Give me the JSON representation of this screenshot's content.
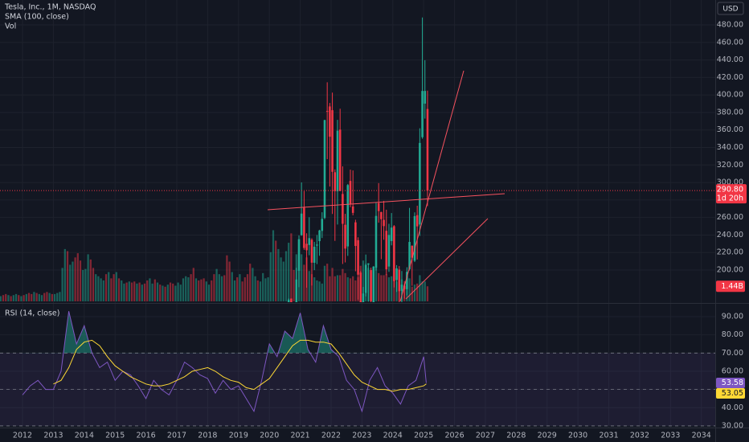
{
  "chart_data": [
    {
      "type": "candlestick",
      "title": "Tesla, Inc., 1M, NASDAQ",
      "indicators": [
        "SMA (100, close)",
        "Vol"
      ],
      "currency": "USD",
      "price_label": "290.80",
      "countdown": "1d 20h",
      "up_color": "#22ab94",
      "down_color": "#f23645",
      "x": [
        "2020-08",
        "2020-09",
        "2020-10",
        "2020-11",
        "2020-12",
        "2021-01",
        "2021-02",
        "2021-03",
        "2021-04",
        "2021-05",
        "2021-06",
        "2021-07",
        "2021-08",
        "2021-09",
        "2021-10",
        "2021-11",
        "2021-12",
        "2022-01",
        "2022-02",
        "2022-03",
        "2022-04",
        "2022-05",
        "2022-06",
        "2022-07",
        "2022-08",
        "2022-09",
        "2022-10",
        "2022-11",
        "2022-12",
        "2023-01",
        "2023-02",
        "2023-03",
        "2023-04",
        "2023-05",
        "2023-06",
        "2023-07",
        "2023-08",
        "2023-09",
        "2023-10",
        "2023-11",
        "2023-12",
        "2024-01",
        "2024-02",
        "2024-03",
        "2024-04",
        "2024-05",
        "2024-06",
        "2024-07",
        "2024-08",
        "2024-09",
        "2024-10",
        "2024-11",
        "2024-12",
        "2025-01",
        "2025-02"
      ],
      "open": [
        96.5,
        167.4,
        143.0,
        131.3,
        199.2,
        239.8,
        271.4,
        230.0,
        228.6,
        234.6,
        208.3,
        227.9,
        233.0,
        244.7,
        259.5,
        381.7,
        386.9,
        382.6,
        311.7,
        289.9,
        360.4,
        286.9,
        251.7,
        227.0,
        301.8,
        272.6,
        254.5,
        234.1,
        197.1,
        118.5,
        173.9,
        206.2,
        199.9,
        163.2,
        202.6,
        276.5,
        266.3,
        257.3,
        244.8,
        204.0,
        233.1,
        250.1,
        188.5,
        200.5,
        176.2,
        182.0,
        178.1,
        201.0,
        227.7,
        210.6,
        262.7,
        252.0,
        351.8,
        390.1,
        384.0
      ],
      "high": [
        167.5,
        167.5,
        155.3,
        202.6,
        239.6,
        300.1,
        290.1,
        242.0,
        260.3,
        236.3,
        232.2,
        240.0,
        246.0,
        266.0,
        371.7,
        414.5,
        390.9,
        402.7,
        315.0,
        371.6,
        384.3,
        318.5,
        264.2,
        298.3,
        314.7,
        313.8,
        257.5,
        237.4,
        198.9,
        180.7,
        217.7,
        207.8,
        202.7,
        204.5,
        277.0,
        299.3,
        266.5,
        279.0,
        268.9,
        252.8,
        265.1,
        251.3,
        205.6,
        204.5,
        198.9,
        187.3,
        203.2,
        271.0,
        228.2,
        265.9,
        273.5,
        361.9,
        488.5,
        439.7,
        405.0
      ],
      "low": [
        94.7,
        112.1,
        127.0,
        126.4,
        180.4,
        239.1,
        223.0,
        179.8,
        216.9,
        182.3,
        199.9,
        206.8,
        216.3,
        236.6,
        258.1,
        326.7,
        295.4,
        264.0,
        233.3,
        252.0,
        290.0,
        206.9,
        208.7,
        216.2,
        271.8,
        262.5,
        198.6,
        166.2,
        108.2,
        101.8,
        169.9,
        163.9,
        152.4,
        158.8,
        199.4,
        254.1,
        212.4,
        234.6,
        194.1,
        197.9,
        228.2,
        180.1,
        175.0,
        160.5,
        138.8,
        167.4,
        171.0,
        199.4,
        182.0,
        209.1,
        212.1,
        238.9,
        350.0,
        373.0,
        273.0
      ],
      "close": [
        166.1,
        143.0,
        129.3,
        189.2,
        235.2,
        264.5,
        225.2,
        222.6,
        236.5,
        208.4,
        226.6,
        229.1,
        245.2,
        258.5,
        371.3,
        381.6,
        352.3,
        312.2,
        290.1,
        359.2,
        290.3,
        252.8,
        224.5,
        297.1,
        275.6,
        265.3,
        227.5,
        194.7,
        123.2,
        173.2,
        205.7,
        207.5,
        164.3,
        203.9,
        261.8,
        267.4,
        258.1,
        250.2,
        200.8,
        240.1,
        248.5,
        187.3,
        201.9,
        175.8,
        183.3,
        178.1,
        197.9,
        232.1,
        214.1,
        261.6,
        249.9,
        345.2,
        404.6,
        404.6,
        290.8
      ],
      "ylim": [
        164.2,
        508.5
      ],
      "yticks": [
        {
          "value": 200,
          "label": "200.00"
        },
        {
          "value": 220,
          "label": "220.00"
        },
        {
          "value": 240,
          "label": "240.00"
        },
        {
          "value": 260,
          "label": "260.00"
        },
        {
          "value": 280,
          "label": "280.00"
        },
        {
          "value": 300,
          "label": "300.00"
        },
        {
          "value": 320,
          "label": "320.00"
        },
        {
          "value": 340,
          "label": "340.00"
        },
        {
          "value": 360,
          "label": "360.00"
        },
        {
          "value": 380,
          "label": "380.00"
        },
        {
          "value": 400,
          "label": "400.00"
        },
        {
          "value": 420,
          "label": "420.00"
        },
        {
          "value": 440,
          "label": "440.00"
        },
        {
          "value": 460,
          "label": "460.00"
        },
        {
          "value": 480,
          "label": "480.00"
        }
      ]
    },
    {
      "type": "bar",
      "up_color": "rgba(34,171,148,0.5)",
      "down_color": "rgba(242,54,69,0.5)",
      "label_color": "#f23645",
      "x": [
        "2011-04",
        "2011-05",
        "2011-06",
        "2011-07",
        "2011-08",
        "2011-09",
        "2011-10",
        "2011-11",
        "2011-12",
        "2012-01",
        "2012-02",
        "2012-03",
        "2012-04",
        "2012-05",
        "2012-06",
        "2012-07",
        "2012-08",
        "2012-09",
        "2012-10",
        "2012-11",
        "2012-12",
        "2013-01",
        "2013-02",
        "2013-03",
        "2013-04",
        "2013-05",
        "2013-06",
        "2013-07",
        "2013-08",
        "2013-09",
        "2013-10",
        "2013-11",
        "2013-12",
        "2014-01",
        "2014-02",
        "2014-03",
        "2014-04",
        "2014-05",
        "2014-06",
        "2014-07",
        "2014-08",
        "2014-09",
        "2014-10",
        "2014-11",
        "2014-12",
        "2015-01",
        "2015-02",
        "2015-03",
        "2015-04",
        "2015-05",
        "2015-06",
        "2015-07",
        "2015-08",
        "2015-09",
        "2015-10",
        "2015-11",
        "2015-12",
        "2016-01",
        "2016-02",
        "2016-03",
        "2016-04",
        "2016-05",
        "2016-06",
        "2016-07",
        "2016-08",
        "2016-09",
        "2016-10",
        "2016-11",
        "2016-12",
        "2017-01",
        "2017-02",
        "2017-03",
        "2017-04",
        "2017-05",
        "2017-06",
        "2017-07",
        "2017-08",
        "2017-09",
        "2017-10",
        "2017-11",
        "2017-12",
        "2018-01",
        "2018-02",
        "2018-03",
        "2018-04",
        "2018-05",
        "2018-06",
        "2018-07",
        "2018-08",
        "2018-09",
        "2018-10",
        "2018-11",
        "2018-12",
        "2019-01",
        "2019-02",
        "2019-03",
        "2019-04",
        "2019-05",
        "2019-06",
        "2019-07",
        "2019-08",
        "2019-09",
        "2019-10",
        "2019-11",
        "2019-12",
        "2020-01",
        "2020-02",
        "2020-03",
        "2020-04",
        "2020-05",
        "2020-06",
        "2020-07",
        "2020-08",
        "2020-09",
        "2020-10",
        "2020-11",
        "2020-12",
        "2021-01",
        "2021-02",
        "2021-03",
        "2021-04",
        "2021-05",
        "2021-06",
        "2021-07",
        "2021-08",
        "2021-09",
        "2021-10",
        "2021-11",
        "2021-12",
        "2022-01",
        "2022-02",
        "2022-03",
        "2022-04",
        "2022-05",
        "2022-06",
        "2022-07",
        "2022-08",
        "2022-09",
        "2022-10",
        "2022-11",
        "2022-12",
        "2023-01",
        "2023-02",
        "2023-03",
        "2023-04",
        "2023-05",
        "2023-06",
        "2023-07",
        "2023-08",
        "2023-09",
        "2023-10",
        "2023-11",
        "2023-12",
        "2024-01",
        "2024-02",
        "2024-03",
        "2024-04",
        "2024-05",
        "2024-06",
        "2024-07",
        "2024-08",
        "2024-09",
        "2024-10",
        "2024-11",
        "2024-12",
        "2025-01",
        "2025-02"
      ],
      "values": [
        0.5,
        0.6,
        0.7,
        0.6,
        0.5,
        0.6,
        0.7,
        0.6,
        0.5,
        0.6,
        0.7,
        0.8,
        0.7,
        0.9,
        0.8,
        0.7,
        0.6,
        0.8,
        0.9,
        0.8,
        0.7,
        0.7,
        0.8,
        0.9,
        3.2,
        5.0,
        4.8,
        3.5,
        3.8,
        4.2,
        4.6,
        3.9,
        3.0,
        3.1,
        4.5,
        4.0,
        3.2,
        2.6,
        2.4,
        2.2,
        2.0,
        2.6,
        2.8,
        2.2,
        2.6,
        2.8,
        2.2,
        2.0,
        1.7,
        1.8,
        1.9,
        1.8,
        1.9,
        1.7,
        1.8,
        1.6,
        1.7,
        2.0,
        2.2,
        1.7,
        2.1,
        1.8,
        1.6,
        1.5,
        1.4,
        1.6,
        1.8,
        1.7,
        1.5,
        1.8,
        1.6,
        2.2,
        2.4,
        2.3,
        2.6,
        3.2,
        2.2,
        2.0,
        2.1,
        2.2,
        1.9,
        1.6,
        2.0,
        2.6,
        3.1,
        2.6,
        2.4,
        2.5,
        4.4,
        3.8,
        2.8,
        2.0,
        2.3,
        2.6,
        1.9,
        2.3,
        2.6,
        3.6,
        3.2,
        2.4,
        2.0,
        1.9,
        2.7,
        2.2,
        2.3,
        4.7,
        6.8,
        5.8,
        5.0,
        4.2,
        3.8,
        4.8,
        5.6,
        6.5,
        3.0,
        4.5,
        5.7,
        4.5,
        3.5,
        4.2,
        2.9,
        2.6,
        2.3,
        2.0,
        1.9,
        1.7,
        3.4,
        3.6,
        2.4,
        3.2,
        2.4,
        2.5,
        2.5,
        3.1,
        2.7,
        2.3,
        2.2,
        2.4,
        2.0,
        2.3,
        3.4,
        3.9,
        3.6,
        3.2,
        3.0,
        3.2,
        3.7,
        2.7,
        2.5,
        2.5,
        2.6,
        2.3,
        2.4,
        2.2,
        1.9,
        1.7,
        2.1,
        1.6,
        1.8,
        2.2,
        1.4,
        1.6,
        1.7,
        2.5,
        1.9,
        1.9,
        1.44
      ],
      "value_labels": [
        null,
        null,
        null,
        null,
        null,
        null,
        null,
        null,
        null,
        null,
        null,
        null,
        null,
        null,
        null,
        null,
        null,
        null,
        null,
        null,
        null,
        null,
        null,
        null,
        null,
        null,
        null,
        null,
        null,
        null,
        null,
        null,
        null,
        null,
        null,
        null,
        null,
        null,
        null,
        null,
        null,
        null,
        null,
        null,
        null,
        null,
        null,
        null,
        null,
        null,
        null,
        null,
        null,
        null,
        null,
        null,
        null,
        null,
        null,
        null,
        null,
        null,
        null,
        null,
        null,
        null,
        null,
        null,
        null,
        null,
        null,
        null,
        null,
        null,
        null,
        null,
        null,
        null,
        null,
        null,
        null,
        null,
        null,
        null,
        null,
        null,
        null,
        null,
        null,
        null,
        null,
        null,
        null,
        null,
        null,
        null,
        null,
        null,
        null,
        null,
        null,
        null,
        null,
        null,
        null,
        null,
        null,
        null,
        null,
        null,
        null,
        null,
        null,
        null,
        null,
        null,
        null,
        null,
        null,
        null,
        null,
        null,
        null,
        null,
        null,
        null,
        null,
        null,
        null,
        null,
        null,
        null,
        null,
        null,
        null,
        null,
        null,
        null,
        null,
        null,
        null,
        null,
        null,
        null,
        null,
        null,
        null,
        null,
        null,
        null,
        null,
        null,
        null,
        null,
        null,
        null,
        null,
        null,
        null,
        null,
        null,
        null,
        null,
        null,
        null,
        null,
        "1.44B"
      ],
      "up": [
        1,
        0,
        0,
        1,
        0,
        1,
        1,
        0,
        1,
        0,
        1,
        0,
        0,
        1,
        0,
        1,
        1,
        0,
        0,
        1,
        0,
        1,
        1,
        1,
        1,
        1,
        0,
        1,
        1,
        0,
        0,
        0,
        1,
        1,
        1,
        0,
        0,
        1,
        1,
        1,
        1,
        0,
        1,
        0,
        0,
        1,
        0,
        1,
        1,
        0,
        1,
        0,
        0,
        1,
        0,
        1,
        0,
        0,
        1,
        1,
        0,
        1,
        0,
        1,
        0,
        1,
        0,
        0,
        1,
        1,
        1,
        1,
        1,
        1,
        0,
        0,
        1,
        0,
        0,
        0,
        1,
        1,
        0,
        0,
        1,
        1,
        1,
        0,
        0,
        0,
        1,
        1,
        0,
        1,
        0,
        0,
        0,
        0,
        1,
        1,
        0,
        1,
        1,
        1,
        1,
        1,
        1,
        0,
        1,
        1,
        1,
        1,
        1,
        0,
        0,
        1,
        1,
        1,
        0,
        0,
        1,
        0,
        1,
        1,
        1,
        1,
        1,
        0,
        0,
        0,
        0,
        1,
        0,
        0,
        0,
        1,
        0,
        0,
        0,
        0,
        0,
        1,
        1,
        1,
        0,
        1,
        1,
        0,
        0,
        0,
        0,
        1,
        1,
        0,
        1,
        0,
        1,
        0,
        1,
        1,
        0,
        1,
        0,
        1,
        1,
        1,
        0
      ],
      "ylim": [
        0,
        28.8
      ]
    },
    {
      "type": "line",
      "title": "RSI (14, close)",
      "x": [
        "2012-01",
        "2012-04",
        "2012-07",
        "2012-10",
        "2013-01",
        "2013-04",
        "2013-07",
        "2013-10",
        "2014-01",
        "2014-04",
        "2014-07",
        "2014-10",
        "2015-01",
        "2015-04",
        "2015-07",
        "2015-10",
        "2016-01",
        "2016-04",
        "2016-07",
        "2016-10",
        "2017-01",
        "2017-04",
        "2017-07",
        "2017-10",
        "2018-01",
        "2018-04",
        "2018-07",
        "2018-10",
        "2019-01",
        "2019-04",
        "2019-07",
        "2019-10",
        "2020-01",
        "2020-04",
        "2020-07",
        "2020-10",
        "2021-01",
        "2021-04",
        "2021-07",
        "2021-10",
        "2022-01",
        "2022-04",
        "2022-07",
        "2022-10",
        "2023-01",
        "2023-04",
        "2023-07",
        "2023-10",
        "2024-01",
        "2024-04",
        "2024-07",
        "2024-10",
        "2025-01",
        "2025-02"
      ],
      "series": [
        {
          "color": "#7e57c2",
          "values": [
            47,
            52,
            55,
            50,
            50,
            60,
            93,
            75,
            85,
            70,
            62,
            65,
            55,
            60,
            58,
            52,
            45,
            55,
            50,
            47,
            55,
            65,
            62,
            58,
            56,
            48,
            55,
            50,
            52,
            45,
            38,
            55,
            75,
            68,
            82,
            78,
            92,
            72,
            65,
            85,
            72,
            68,
            55,
            50,
            38,
            55,
            62,
            52,
            48,
            42,
            52,
            55,
            68,
            53.58
          ]
        },
        {
          "color": "#fdd835",
          "values": [
            null,
            null,
            null,
            null,
            53,
            55,
            62,
            72,
            76,
            77,
            74,
            68,
            63,
            60,
            57,
            55,
            53,
            52,
            52,
            53,
            55,
            57,
            60,
            61,
            62,
            60,
            57,
            55,
            54,
            51,
            50,
            53,
            56,
            62,
            68,
            74,
            77,
            77,
            76,
            76,
            75,
            70,
            64,
            58,
            54,
            52,
            50,
            50,
            49,
            50,
            50,
            51,
            52,
            53.05
          ]
        }
      ],
      "levels": [
        70,
        50,
        30
      ],
      "band_color": "rgba(126,87,194,0.1)",
      "overbought_color": "rgba(34,171,148,0.45)",
      "ylim": [
        29.1,
        96.6
      ],
      "yticks": [
        {
          "value": 30,
          "label": "30.00"
        },
        {
          "value": 40,
          "label": "40.00"
        },
        {
          "value": 50,
          "label": "50.00"
        },
        {
          "value": 60,
          "label": "60.00"
        },
        {
          "value": 70,
          "label": "70.00"
        },
        {
          "value": 80,
          "label": "80.00"
        },
        {
          "value": 90,
          "label": "90.00"
        }
      ],
      "xlim": [
        2011.27,
        2034.45
      ],
      "xticks": [
        2012,
        2013,
        2014,
        2015,
        2016,
        2017,
        2018,
        2019,
        2020,
        2021,
        2022,
        2023,
        2024,
        2025,
        2026,
        2027,
        2028,
        2029,
        2030,
        2031,
        2032,
        2033,
        2034
      ]
    }
  ]
}
